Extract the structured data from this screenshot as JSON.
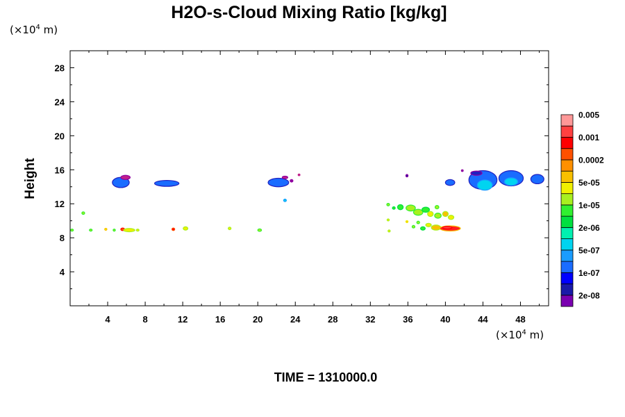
{
  "chart_data": {
    "type": "heatmap",
    "title": "H2O-s-Cloud Mixing Ratio [kg/kg]",
    "ylabel": "Height",
    "x_unit": {
      "prefix": "(×10",
      "exponent": "4",
      "suffix": " m)"
    },
    "y_unit": {
      "prefix": "(×10",
      "exponent": "4",
      "suffix": " m)"
    },
    "xlim": [
      0,
      51
    ],
    "ylim": [
      0,
      30
    ],
    "x_ticks": [
      4,
      8,
      12,
      16,
      20,
      24,
      28,
      32,
      36,
      40,
      44,
      48
    ],
    "y_ticks": [
      4,
      8,
      12,
      16,
      20,
      24,
      28
    ],
    "footer": "TIME = 1310000.0",
    "colorbar": {
      "colors": [
        "#7a00b0",
        "#1a1aa8",
        "#0000ff",
        "#1a6cff",
        "#1a9cff",
        "#00d4f0",
        "#00f0b0",
        "#00e040",
        "#30f030",
        "#a8f020",
        "#f0f000",
        "#f8c000",
        "#ff9000",
        "#ff5000",
        "#ff0000",
        "#ff4040",
        "#ff9898"
      ],
      "labels": [
        "2e-08",
        "1e-07",
        "5e-07",
        "2e-06",
        "1e-05",
        "5e-05",
        "0.0002",
        "0.001",
        "0.005"
      ]
    },
    "features": [
      {
        "x": 5.4,
        "y": 14.5,
        "rx": 0.9,
        "ry": 0.6,
        "color": "#1a6cff",
        "edge": "#2020c0"
      },
      {
        "x": 5.9,
        "y": 15.1,
        "rx": 0.5,
        "ry": 0.25,
        "color": "#c0208a",
        "edge": "#9000a0"
      },
      {
        "x": 10.3,
        "y": 14.4,
        "rx": 1.3,
        "ry": 0.35,
        "color": "#1a6cff",
        "edge": "#2020c0"
      },
      {
        "x": 22.2,
        "y": 14.5,
        "rx": 1.1,
        "ry": 0.5,
        "color": "#1a6cff",
        "edge": "#2020c0"
      },
      {
        "x": 22.9,
        "y": 15.1,
        "rx": 0.3,
        "ry": 0.15,
        "color": "#c0208a",
        "edge": "#9000a0"
      },
      {
        "x": 23.6,
        "y": 14.7,
        "rx": 0.15,
        "ry": 0.15,
        "color": "#9000a0",
        "edge": "#9000a0"
      },
      {
        "x": 24.4,
        "y": 15.4,
        "rx": 0.1,
        "ry": 0.1,
        "color": "#c0208a",
        "edge": "#c0208a"
      },
      {
        "x": 35.9,
        "y": 15.3,
        "rx": 0.12,
        "ry": 0.15,
        "color": "#1a1aa8",
        "edge": "#9000a0"
      },
      {
        "x": 40.5,
        "y": 14.5,
        "rx": 0.5,
        "ry": 0.35,
        "color": "#1a6cff",
        "edge": "#2020c0"
      },
      {
        "x": 41.8,
        "y": 15.9,
        "rx": 0.1,
        "ry": 0.1,
        "color": "#9000a0",
        "edge": "#9000a0"
      },
      {
        "x": 44.0,
        "y": 14.8,
        "rx": 1.5,
        "ry": 1.1,
        "color": "#1a6cff",
        "edge": "#2020c0"
      },
      {
        "x": 43.3,
        "y": 15.6,
        "rx": 0.6,
        "ry": 0.25,
        "color": "#2020c0",
        "edge": "#9000a0"
      },
      {
        "x": 44.2,
        "y": 14.2,
        "rx": 0.8,
        "ry": 0.6,
        "color": "#00d4f0",
        "edge": "#1a9cff"
      },
      {
        "x": 47.0,
        "y": 15.0,
        "rx": 1.3,
        "ry": 0.9,
        "color": "#1a6cff",
        "edge": "#2020c0"
      },
      {
        "x": 47.0,
        "y": 14.6,
        "rx": 0.7,
        "ry": 0.45,
        "color": "#00d4f0",
        "edge": "#1a9cff"
      },
      {
        "x": 49.8,
        "y": 14.9,
        "rx": 0.7,
        "ry": 0.55,
        "color": "#1a6cff",
        "edge": "#2020c0"
      },
      {
        "x": 22.9,
        "y": 12.4,
        "rx": 0.15,
        "ry": 0.15,
        "color": "#00d4f0",
        "edge": "#1a9cff"
      },
      {
        "x": 1.4,
        "y": 10.9,
        "rx": 0.15,
        "ry": 0.15,
        "color": "#a8f020",
        "edge": "#30f030"
      },
      {
        "x": 0.2,
        "y": 8.9,
        "rx": 0.15,
        "ry": 0.12,
        "color": "#a8f020",
        "edge": "#30f030"
      },
      {
        "x": 2.2,
        "y": 8.9,
        "rx": 0.15,
        "ry": 0.12,
        "color": "#a8f020",
        "edge": "#30f030"
      },
      {
        "x": 3.8,
        "y": 9.0,
        "rx": 0.12,
        "ry": 0.12,
        "color": "#f0f000",
        "edge": "#f8c000"
      },
      {
        "x": 4.7,
        "y": 8.9,
        "rx": 0.12,
        "ry": 0.12,
        "color": "#a8f020",
        "edge": "#30f030"
      },
      {
        "x": 5.6,
        "y": 9.0,
        "rx": 0.2,
        "ry": 0.15,
        "color": "#ff5000",
        "edge": "#ff0000"
      },
      {
        "x": 6.3,
        "y": 8.9,
        "rx": 0.6,
        "ry": 0.2,
        "color": "#f0f000",
        "edge": "#a8f020"
      },
      {
        "x": 7.2,
        "y": 8.9,
        "rx": 0.15,
        "ry": 0.12,
        "color": "#f0f000",
        "edge": "#a8f020"
      },
      {
        "x": 11.0,
        "y": 9.0,
        "rx": 0.15,
        "ry": 0.15,
        "color": "#ff0000",
        "edge": "#ff5000"
      },
      {
        "x": 12.3,
        "y": 9.1,
        "rx": 0.25,
        "ry": 0.2,
        "color": "#f0f000",
        "edge": "#a8f020"
      },
      {
        "x": 17.0,
        "y": 9.1,
        "rx": 0.15,
        "ry": 0.15,
        "color": "#f0f000",
        "edge": "#a8f020"
      },
      {
        "x": 20.2,
        "y": 8.9,
        "rx": 0.2,
        "ry": 0.15,
        "color": "#a8f020",
        "edge": "#30f030"
      },
      {
        "x": 33.9,
        "y": 11.9,
        "rx": 0.15,
        "ry": 0.15,
        "color": "#a8f020",
        "edge": "#30f030"
      },
      {
        "x": 34.5,
        "y": 11.5,
        "rx": 0.15,
        "ry": 0.15,
        "color": "#30f030",
        "edge": "#00e040"
      },
      {
        "x": 35.2,
        "y": 11.6,
        "rx": 0.3,
        "ry": 0.3,
        "color": "#30f030",
        "edge": "#00e040"
      },
      {
        "x": 36.3,
        "y": 11.5,
        "rx": 0.5,
        "ry": 0.35,
        "color": "#a8f020",
        "edge": "#30f030"
      },
      {
        "x": 37.1,
        "y": 11.0,
        "rx": 0.5,
        "ry": 0.35,
        "color": "#a8f020",
        "edge": "#30f030"
      },
      {
        "x": 37.9,
        "y": 11.3,
        "rx": 0.4,
        "ry": 0.3,
        "color": "#30f030",
        "edge": "#00e040"
      },
      {
        "x": 38.4,
        "y": 10.8,
        "rx": 0.3,
        "ry": 0.3,
        "color": "#f0f000",
        "edge": "#a8f020"
      },
      {
        "x": 39.1,
        "y": 11.6,
        "rx": 0.2,
        "ry": 0.2,
        "color": "#a8f020",
        "edge": "#30f030"
      },
      {
        "x": 39.2,
        "y": 10.6,
        "rx": 0.35,
        "ry": 0.3,
        "color": "#a8f020",
        "edge": "#30f030"
      },
      {
        "x": 40.0,
        "y": 10.8,
        "rx": 0.3,
        "ry": 0.3,
        "color": "#f8c000",
        "edge": "#a8f020"
      },
      {
        "x": 40.6,
        "y": 10.4,
        "rx": 0.3,
        "ry": 0.25,
        "color": "#f0f000",
        "edge": "#a8f020"
      },
      {
        "x": 33.9,
        "y": 10.1,
        "rx": 0.12,
        "ry": 0.12,
        "color": "#f0f000",
        "edge": "#a8f020"
      },
      {
        "x": 35.9,
        "y": 9.9,
        "rx": 0.12,
        "ry": 0.12,
        "color": "#f8c000",
        "edge": "#f0f000"
      },
      {
        "x": 37.1,
        "y": 9.8,
        "rx": 0.15,
        "ry": 0.15,
        "color": "#a8f020",
        "edge": "#30f030"
      },
      {
        "x": 36.6,
        "y": 9.3,
        "rx": 0.15,
        "ry": 0.15,
        "color": "#a8f020",
        "edge": "#30f030"
      },
      {
        "x": 37.6,
        "y": 9.1,
        "rx": 0.25,
        "ry": 0.2,
        "color": "#30f030",
        "edge": "#00e040"
      },
      {
        "x": 38.2,
        "y": 9.5,
        "rx": 0.3,
        "ry": 0.2,
        "color": "#f0f000",
        "edge": "#a8f020"
      },
      {
        "x": 39.0,
        "y": 9.2,
        "rx": 0.5,
        "ry": 0.3,
        "color": "#f8c000",
        "edge": "#a8f020"
      },
      {
        "x": 40.5,
        "y": 9.1,
        "rx": 1.1,
        "ry": 0.3,
        "color": "#ff2020",
        "edge": "#f8c000"
      },
      {
        "x": 40.2,
        "y": 9.2,
        "rx": 0.5,
        "ry": 0.15,
        "color": "#ff4040",
        "edge": "#ff0000"
      },
      {
        "x": 34.0,
        "y": 8.8,
        "rx": 0.12,
        "ry": 0.12,
        "color": "#f0f000",
        "edge": "#a8f020"
      }
    ]
  }
}
